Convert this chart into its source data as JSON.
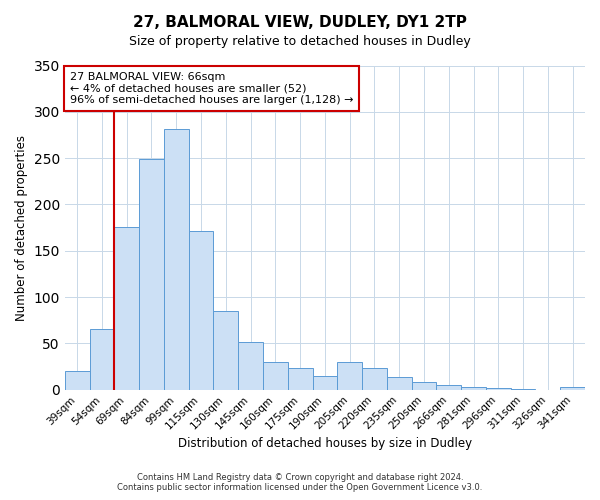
{
  "title": "27, BALMORAL VIEW, DUDLEY, DY1 2TP",
  "subtitle": "Size of property relative to detached houses in Dudley",
  "xlabel": "Distribution of detached houses by size in Dudley",
  "ylabel": "Number of detached properties",
  "bar_labels": [
    "39sqm",
    "54sqm",
    "69sqm",
    "84sqm",
    "99sqm",
    "115sqm",
    "130sqm",
    "145sqm",
    "160sqm",
    "175sqm",
    "190sqm",
    "205sqm",
    "220sqm",
    "235sqm",
    "250sqm",
    "266sqm",
    "281sqm",
    "296sqm",
    "311sqm",
    "326sqm",
    "341sqm"
  ],
  "bar_heights": [
    20,
    66,
    176,
    249,
    281,
    171,
    85,
    52,
    30,
    23,
    15,
    30,
    23,
    14,
    8,
    5,
    3,
    2,
    1,
    0,
    3
  ],
  "bar_color": "#cce0f5",
  "bar_edge_color": "#5b9bd5",
  "vline_color": "#cc0000",
  "vline_x": 1.5,
  "ylim": [
    0,
    350
  ],
  "yticks": [
    0,
    50,
    100,
    150,
    200,
    250,
    300,
    350
  ],
  "annotation_title": "27 BALMORAL VIEW: 66sqm",
  "annotation_line1": "← 4% of detached houses are smaller (52)",
  "annotation_line2": "96% of semi-detached houses are larger (1,128) →",
  "annotation_box_color": "#ffffff",
  "annotation_box_edge": "#cc0000",
  "footer1": "Contains HM Land Registry data © Crown copyright and database right 2024.",
  "footer2": "Contains public sector information licensed under the Open Government Licence v3.0."
}
